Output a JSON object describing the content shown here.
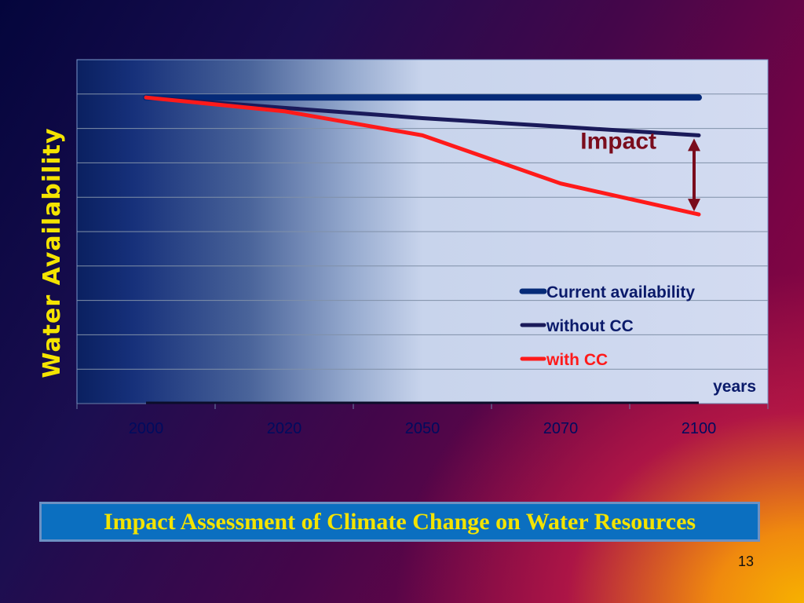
{
  "slide": {
    "caption": "Impact Assessment of Climate Change on Water Resources",
    "page_number": "13"
  },
  "chart_data": {
    "type": "line",
    "title": "",
    "xlabel": "years",
    "ylabel": "Water Availability",
    "categories": [
      "2000",
      "2020",
      "2050",
      "2070",
      "2100"
    ],
    "ylim": [
      0,
      10
    ],
    "grid": true,
    "legend_position": "bottom-right",
    "series": [
      {
        "name": "Current availability",
        "color": "#052a78",
        "values": [
          8.9,
          8.9,
          8.9,
          8.9,
          8.9
        ]
      },
      {
        "name": "without CC",
        "color": "#1a1a5a",
        "values": [
          8.9,
          8.6,
          8.3,
          8.05,
          7.8
        ]
      },
      {
        "name": "with CC",
        "color": "#ff1a1a",
        "values": [
          8.9,
          8.5,
          7.8,
          6.4,
          5.5
        ]
      }
    ],
    "annotations": [
      {
        "text": "Impact",
        "category": "2100",
        "from": 7.8,
        "to": 5.5,
        "color": "#7a0c1c"
      }
    ]
  }
}
